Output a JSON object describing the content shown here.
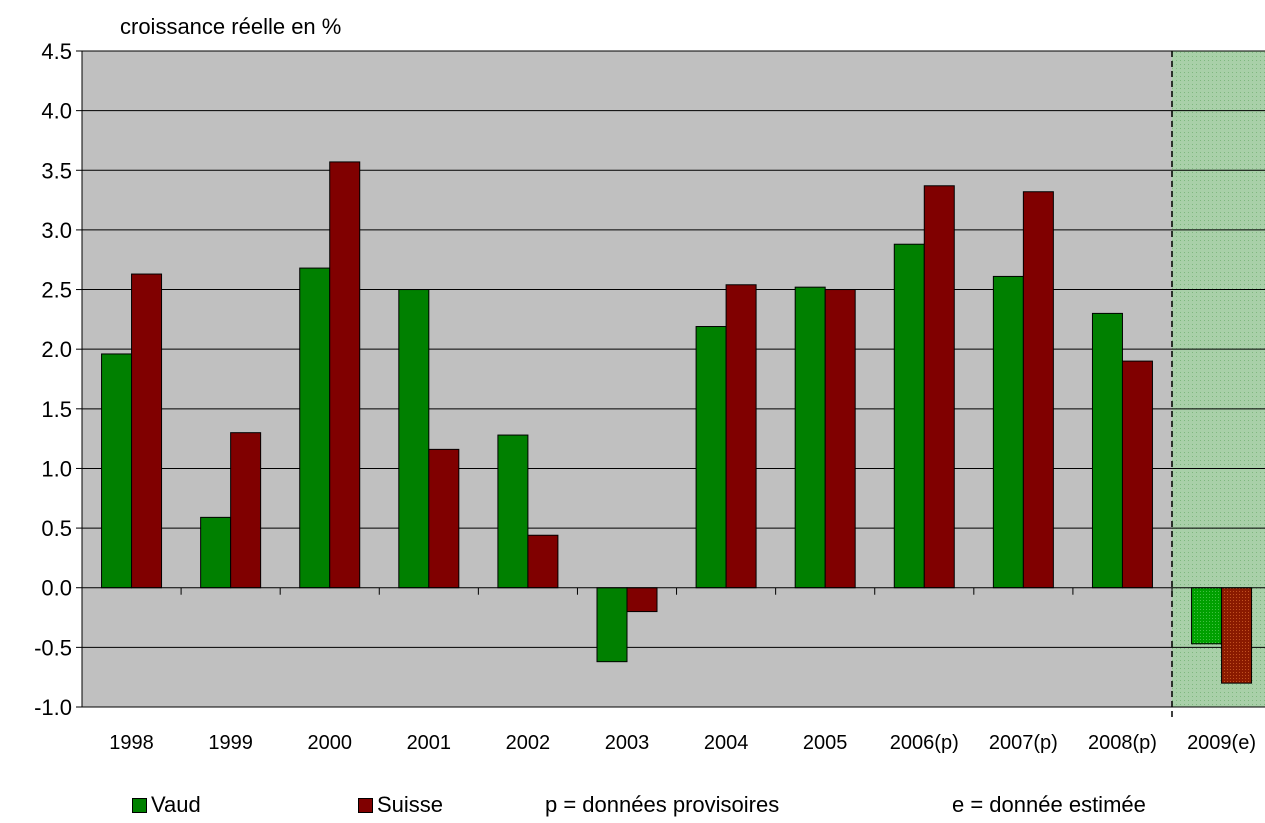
{
  "chart_data": {
    "type": "bar",
    "title": "",
    "ylabel": "croissance réelle en %",
    "xlabel": "",
    "categories": [
      "1998",
      "1999",
      "2000",
      "2001",
      "2002",
      "2003",
      "2004",
      "2005",
      "2006(p)",
      "2007(p)",
      "2008(p)",
      "2009(e)"
    ],
    "series": [
      {
        "name": "Vaud",
        "color": "#008000",
        "values": [
          1.96,
          0.59,
          2.68,
          2.5,
          1.28,
          -0.62,
          2.19,
          2.52,
          2.88,
          2.61,
          2.3,
          -0.47
        ]
      },
      {
        "name": "Suisse",
        "color": "#800000",
        "values": [
          2.63,
          1.3,
          3.57,
          1.16,
          0.44,
          -0.2,
          2.54,
          2.5,
          3.37,
          3.32,
          1.9,
          -0.8
        ]
      }
    ],
    "ylim": [
      -1.0,
      4.5
    ],
    "yticks": [
      "4.5",
      "4.0",
      "3.5",
      "3.0",
      "2.5",
      "2.0",
      "1.5",
      "1.0",
      "0.5",
      "0.0",
      "-0.5",
      "-1.0"
    ],
    "grid": true,
    "plot_background": "#c0c0c0",
    "estimate_background": "#a8cfa8",
    "estimated_category": "2009(e)",
    "legend_position": "bottom"
  },
  "legend": {
    "vaud": "Vaud",
    "suisse": "Suisse",
    "note_p": "p = données provisoires",
    "note_e": "e = donnée estimée"
  }
}
